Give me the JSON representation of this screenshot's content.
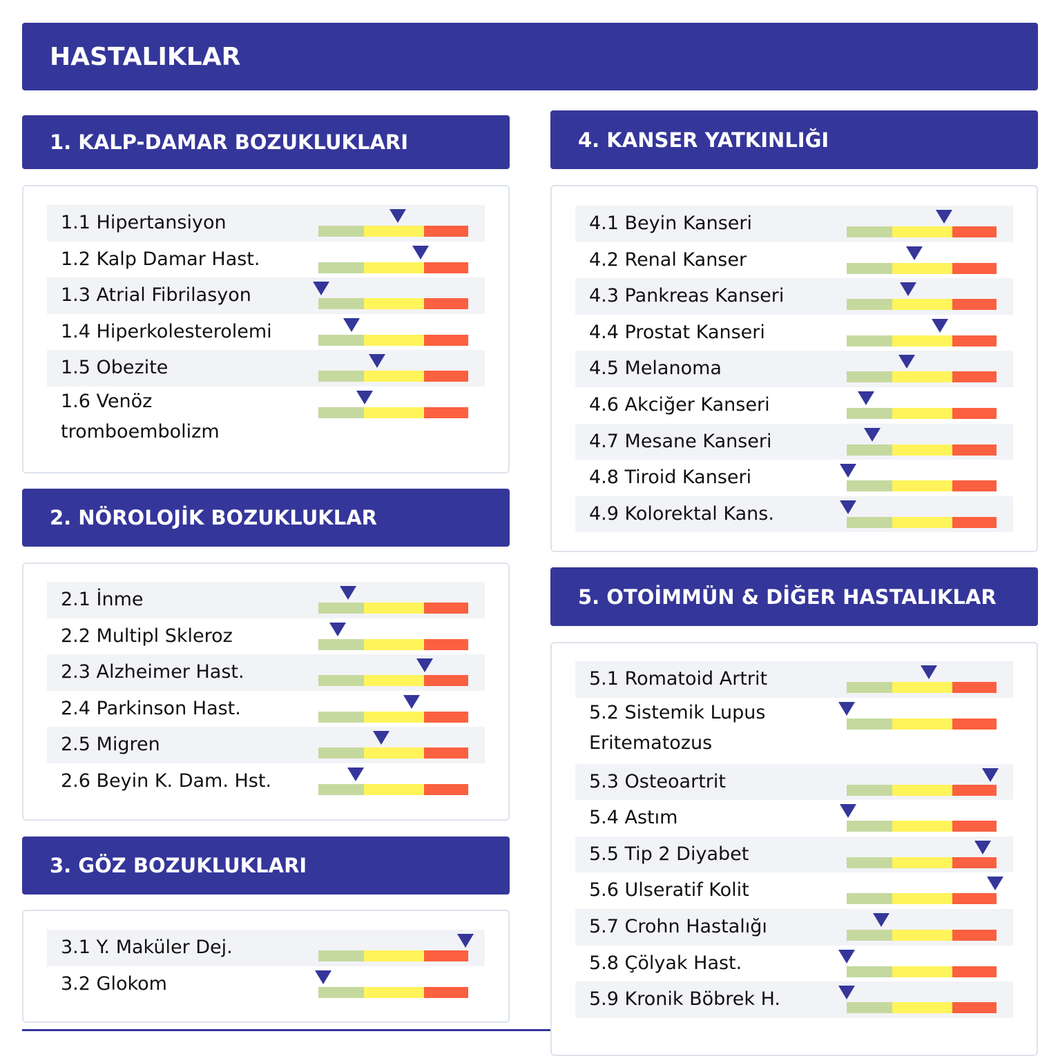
{
  "header": {
    "title": "HASTALIKLAR"
  },
  "gauge_colors": [
    "#c5d99f",
    "#fff45a",
    "#fb6040"
  ],
  "marker_color": "#35369a",
  "sections": [
    {
      "title": "1. KALP-DAMAR BOZUKLUKLARI",
      "items": [
        {
          "label": "1.1 Hipertansiyon",
          "risk": 0.53
        },
        {
          "label": "1.2 Kalp Damar Hast.",
          "risk": 0.68
        },
        {
          "label": "1.3 Atrial Fibrilasyon",
          "risk": 0.02
        },
        {
          "label": "1.4 Hiperkolesterolemi",
          "risk": 0.22
        },
        {
          "label": "1.5 Obezite",
          "risk": 0.39
        },
        {
          "label": "1.6 Venöz tromboembolizm",
          "risk": 0.31
        }
      ]
    },
    {
      "title": "2. NÖROLOJİK BOZUKLUKLAR",
      "items": [
        {
          "label": "2.1 İnme",
          "risk": 0.2
        },
        {
          "label": "2.2 Multipl Skleroz",
          "risk": 0.13
        },
        {
          "label": "2.3 Alzheimer Hast.",
          "risk": 0.71
        },
        {
          "label": "2.4 Parkinson Hast.",
          "risk": 0.62
        },
        {
          "label": "2.5 Migren",
          "risk": 0.42
        },
        {
          "label": "2.6 Beyin K. Dam.  Hst.",
          "risk": 0.25
        }
      ]
    },
    {
      "title": "3. GÖZ BOZUKLUKLARI",
      "items": [
        {
          "label": "3.1 Y. Maküler Dej.",
          "risk": 0.98
        },
        {
          "label": "3.2 Glokom",
          "risk": 0.03
        }
      ]
    },
    {
      "title": "4. KANSER YATKINLIĞI",
      "items": [
        {
          "label": "4.1 Beyin Kanseri",
          "risk": 0.65
        },
        {
          "label": "4.2 Renal Kanser",
          "risk": 0.45
        },
        {
          "label": "4.3 Pankreas Kanseri",
          "risk": 0.41
        },
        {
          "label": "4.4 Prostat Kanseri",
          "risk": 0.62
        },
        {
          "label": "4.5 Melanoma",
          "risk": 0.4
        },
        {
          "label": "4.6 Akciğer Kanseri",
          "risk": 0.13
        },
        {
          "label": "4.7 Mesane Kanseri",
          "risk": 0.17
        },
        {
          "label": "4.8 Tiroid Kanseri",
          "risk": 0.01
        },
        {
          "label": "4.9 Kolorektal Kans.",
          "risk": 0.01
        }
      ]
    },
    {
      "title": "5. OTOİMMÜN & DİĞER HASTALIKLAR",
      "items": [
        {
          "label": "5.1 Romatoid Artrit",
          "risk": 0.55
        },
        {
          "label": "5.2 Sistemik Lupus Eritematozus",
          "risk": 0
        },
        {
          "label": "5.3 Osteoartrit",
          "risk": 0.96
        },
        {
          "label": "5.4 Astım",
          "risk": 0.01
        },
        {
          "label": "5.5 Tip 2 Diyabet",
          "risk": 0.91
        },
        {
          "label": "5.6 Ulseratif Kolit",
          "risk": 0.99
        },
        {
          "label": "5.7 Crohn Hastalığı",
          "risk": 0.23
        },
        {
          "label": "5.8 Çölyak Hast.",
          "risk": 0
        },
        {
          "label": "5.9 Kronik Böbrek H.",
          "risk": 0
        }
      ]
    }
  ]
}
